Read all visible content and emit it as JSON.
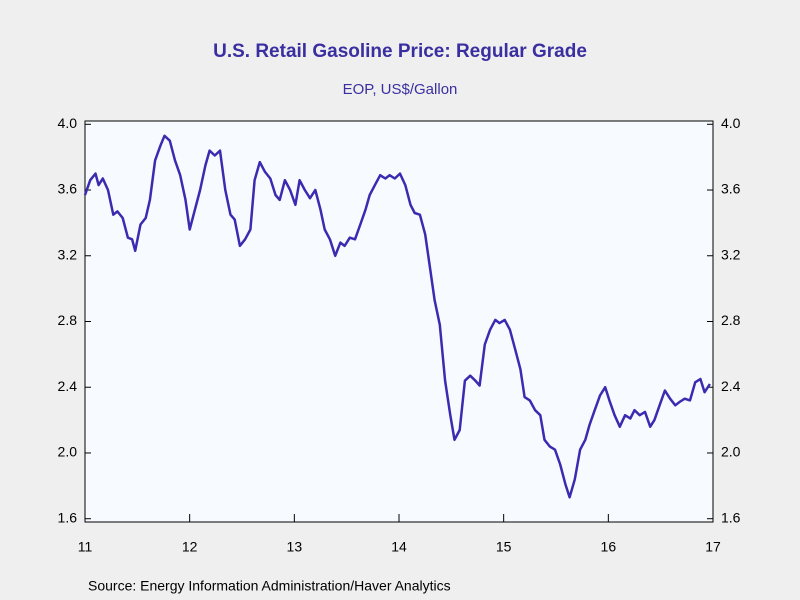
{
  "chart_data": {
    "type": "line",
    "title": "U.S. Retail Gasoline Price: Regular Grade",
    "subtitle": "EOP, US$/Gallon",
    "source": "Source:  Energy Information Administration/Haver Analytics",
    "x": [
      11.0,
      11.05,
      11.1,
      11.13,
      11.17,
      11.22,
      11.27,
      11.31,
      11.36,
      11.41,
      11.45,
      11.48,
      11.53,
      11.58,
      11.62,
      11.67,
      11.72,
      11.76,
      11.81,
      11.86,
      11.91,
      11.96,
      12.0,
      12.05,
      12.1,
      12.15,
      12.19,
      12.24,
      12.29,
      12.34,
      12.39,
      12.43,
      12.48,
      12.53,
      12.58,
      12.62,
      12.67,
      12.72,
      12.77,
      12.82,
      12.86,
      12.91,
      12.96,
      13.01,
      13.05,
      13.1,
      13.15,
      13.2,
      13.25,
      13.29,
      13.34,
      13.39,
      13.44,
      13.48,
      13.53,
      13.58,
      13.63,
      13.68,
      13.72,
      13.77,
      13.82,
      13.87,
      13.91,
      13.96,
      14.01,
      14.06,
      14.11,
      14.15,
      14.2,
      14.25,
      14.3,
      14.34,
      14.39,
      14.44,
      14.49,
      14.53,
      14.58,
      14.63,
      14.68,
      14.73,
      14.77,
      14.82,
      14.87,
      14.92,
      14.96,
      15.01,
      15.06,
      15.11,
      15.16,
      15.2,
      15.25,
      15.3,
      15.35,
      15.39,
      15.44,
      15.49,
      15.54,
      15.59,
      15.63,
      15.68,
      15.73,
      15.78,
      15.82,
      15.87,
      15.92,
      15.97,
      16.01,
      16.06,
      16.11,
      16.16,
      16.21,
      16.25,
      16.3,
      16.35,
      16.4,
      16.44,
      16.49,
      16.54,
      16.59,
      16.64,
      16.68,
      16.73,
      16.78,
      16.83,
      16.88,
      16.92,
      16.97
    ],
    "series": [
      {
        "name": "Regular Grade",
        "color": "#3a2bb0",
        "values": [
          3.57,
          3.66,
          3.7,
          3.63,
          3.67,
          3.6,
          3.45,
          3.47,
          3.43,
          3.31,
          3.3,
          3.23,
          3.39,
          3.43,
          3.54,
          3.78,
          3.87,
          3.93,
          3.9,
          3.78,
          3.69,
          3.54,
          3.36,
          3.48,
          3.6,
          3.75,
          3.84,
          3.81,
          3.84,
          3.6,
          3.45,
          3.42,
          3.26,
          3.3,
          3.36,
          3.66,
          3.77,
          3.71,
          3.67,
          3.57,
          3.54,
          3.66,
          3.6,
          3.51,
          3.66,
          3.6,
          3.55,
          3.6,
          3.48,
          3.36,
          3.3,
          3.2,
          3.28,
          3.26,
          3.31,
          3.3,
          3.39,
          3.48,
          3.57,
          3.63,
          3.69,
          3.67,
          3.69,
          3.67,
          3.7,
          3.63,
          3.51,
          3.46,
          3.45,
          3.33,
          3.11,
          2.93,
          2.78,
          2.44,
          2.23,
          2.08,
          2.14,
          2.44,
          2.47,
          2.44,
          2.41,
          2.66,
          2.75,
          2.81,
          2.79,
          2.81,
          2.75,
          2.63,
          2.51,
          2.34,
          2.32,
          2.26,
          2.23,
          2.08,
          2.04,
          2.02,
          1.93,
          1.81,
          1.73,
          1.84,
          2.02,
          2.08,
          2.17,
          2.26,
          2.35,
          2.4,
          2.32,
          2.23,
          2.16,
          2.23,
          2.21,
          2.26,
          2.23,
          2.25,
          2.16,
          2.2,
          2.29,
          2.38,
          2.33,
          2.29,
          2.31,
          2.33,
          2.32,
          2.43,
          2.45,
          2.37,
          2.42
        ]
      }
    ],
    "xlim": [
      11,
      17
    ],
    "xticks": [
      11,
      12,
      13,
      14,
      15,
      16,
      17
    ],
    "ylim": [
      1.58,
      4.02
    ],
    "yticks": [
      {
        "value": 4,
        "label": "4.0"
      },
      3.6,
      3.2,
      2.8,
      2.4,
      {
        "value": 2,
        "label": "2.0"
      },
      1.6
    ],
    "right_axis": true,
    "grid": false
  }
}
